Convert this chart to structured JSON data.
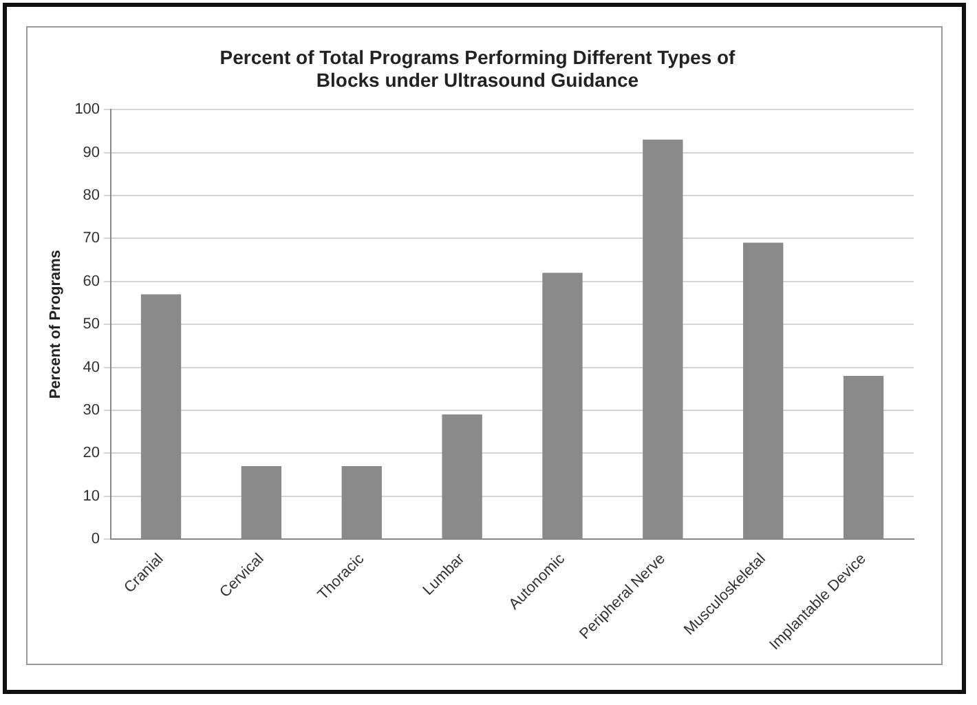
{
  "chart_data": {
    "type": "bar",
    "title": "Percent of Total Programs Performing Different Types of Blocks under Ultrasound Guidance",
    "ylabel": "Percent of Programs",
    "categories": [
      "Cranial",
      "Cervical",
      "Thoracic",
      "Lumbar",
      "Autonomic",
      "Peripheral Nerve",
      "Musculoskeletal",
      "Implantable Device"
    ],
    "values": [
      57,
      17,
      17,
      29,
      62,
      93,
      69,
      38
    ],
    "color": "#8a8a8a",
    "ylim": [
      0,
      100
    ],
    "yticks": [
      0,
      10,
      20,
      30,
      40,
      50,
      60,
      70,
      80,
      90,
      100
    ],
    "grid": "y",
    "legend": false
  }
}
